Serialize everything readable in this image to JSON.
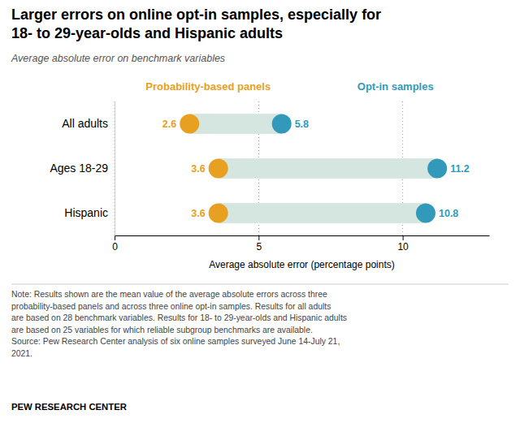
{
  "chart_data": {
    "type": "dumbbell",
    "title": "Larger errors on online opt-in samples, especially for\n18- to 29-year-olds and Hispanic adults",
    "subtitle": "Average absolute error on benchmark variables",
    "orientation": "horizontal",
    "categories": [
      "All adults",
      "Ages 18-29",
      "Hispanic"
    ],
    "series": [
      {
        "name": "Probability-based panels",
        "color": "#E8A020",
        "values": [
          2.6,
          3.6,
          3.6
        ]
      },
      {
        "name": "Opt-in samples",
        "color": "#3399BB",
        "values": [
          5.8,
          11.2,
          10.8
        ]
      }
    ],
    "color": "#D4E6DF",
    "xlabel": "Average absolute error (percentage points)",
    "xlim": [
      0,
      13
    ],
    "xticks": [
      0,
      5,
      10
    ],
    "grid": true,
    "legend": "top",
    "data_labels": true,
    "note": "Note: Results shown are the mean value of the average absolute errors across three\nprobability-based panels and across three online opt-in samples. Results for all adults\nare based on 28 benchmark variables. Results for 18- to 29-year-olds and Hispanic adults\nare based on 25 variables for which reliable subgroup benchmarks are available.\nSource: Pew Research Center analysis of six online samples surveyed June 14-July 21,\n2021.",
    "footer": "PEW RESEARCH CENTER"
  }
}
